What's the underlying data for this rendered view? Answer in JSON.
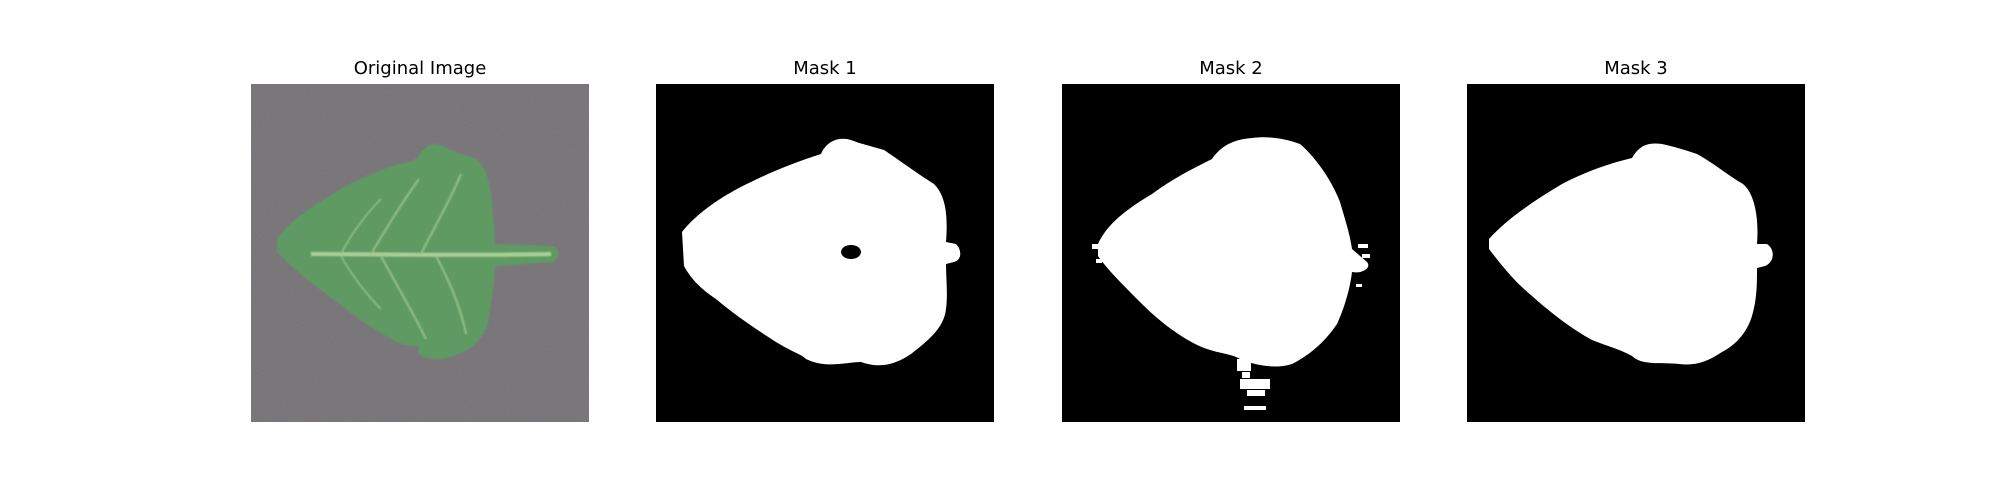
{
  "figure": {
    "panels": [
      {
        "title": "Original Image",
        "kind": "photo",
        "content": "leaf"
      },
      {
        "title": "Mask 1",
        "kind": "mask",
        "content": "leaf-mask-with-hole"
      },
      {
        "title": "Mask 2",
        "kind": "mask",
        "content": "leaf-mask-noisy"
      },
      {
        "title": "Mask 3",
        "kind": "mask",
        "content": "leaf-mask-clean"
      }
    ],
    "colors": {
      "background": "#ffffff",
      "photo_background": "#7f7c80",
      "leaf_fill": "#5f9a63",
      "leaf_vein": "#a9cf96",
      "mask_background": "#000000",
      "mask_foreground": "#ffffff"
    }
  }
}
